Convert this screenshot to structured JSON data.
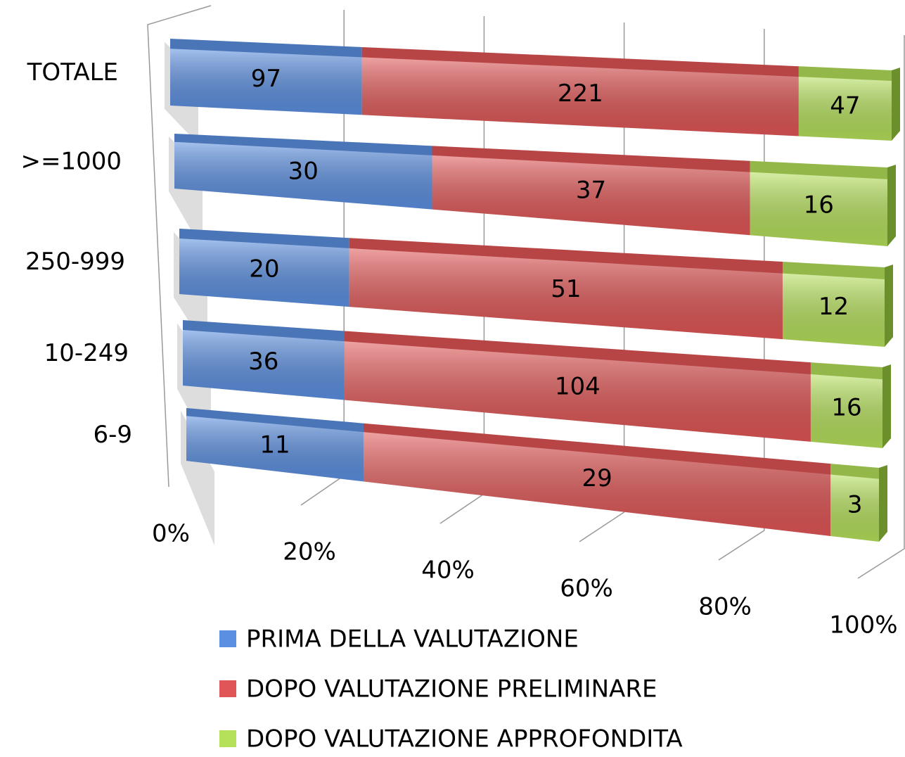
{
  "chart_data": {
    "type": "bar",
    "orientation": "horizontal",
    "stacking": "percent",
    "categories": [
      "TOTALE",
      ">=1000",
      "250-999",
      "10-249",
      "6-9"
    ],
    "series": [
      {
        "name": "PRIMA DELLA VALUTAZIONE",
        "color": "#5b8fe0",
        "values": [
          97,
          30,
          20,
          36,
          11
        ]
      },
      {
        "name": "DOPO VALUTAZIONE PRELIMINARE",
        "color": "#e05555",
        "values": [
          221,
          37,
          51,
          104,
          29
        ]
      },
      {
        "name": "DOPO VALUTAZIONE APPROFONDITA",
        "color": "#b5e05a",
        "values": [
          47,
          16,
          12,
          16,
          3
        ]
      }
    ],
    "xlim": [
      0,
      100
    ],
    "xticks": [
      {
        "value": 0,
        "label": "0%"
      },
      {
        "value": 20,
        "label": "20%"
      },
      {
        "value": 40,
        "label": "40%"
      },
      {
        "value": 60,
        "label": "60%"
      },
      {
        "value": 80,
        "label": "80%"
      },
      {
        "value": 100,
        "label": "100%"
      }
    ],
    "grid": true,
    "legend": "bottom"
  }
}
